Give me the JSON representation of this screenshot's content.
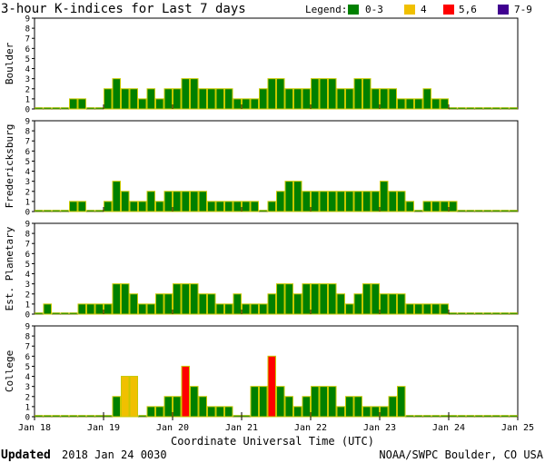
{
  "title": "3-hour K-indices for Last 7 days",
  "legend": {
    "label": "Legend:",
    "items": [
      {
        "label": "0-3",
        "color": "#008000"
      },
      {
        "label": "4",
        "color": "#f0c000"
      },
      {
        "label": "5,6",
        "color": "#ff0000"
      },
      {
        "label": "7-9",
        "color": "#400090"
      }
    ]
  },
  "footer": {
    "updated_label": "Updated",
    "updated_value": "2018 Jan 24 0030",
    "source": "NOAA/SWPC Boulder, CO USA"
  },
  "chart_data": [
    {
      "type": "bar",
      "title": "",
      "ylabel": "Boulder",
      "xlabel": "",
      "ylim": [
        0,
        9
      ],
      "yticks": [
        "0",
        "1",
        "2",
        "3",
        "4",
        "5",
        "6",
        "7",
        "8",
        "9"
      ],
      "values": [
        0,
        0,
        0,
        0,
        1,
        1,
        0,
        0,
        2,
        3,
        2,
        2,
        1,
        2,
        1,
        2,
        2,
        3,
        3,
        2,
        2,
        2,
        2,
        1,
        1,
        1,
        2,
        3,
        3,
        2,
        2,
        2,
        3,
        3,
        3,
        2,
        2,
        3,
        3,
        2,
        2,
        2,
        1,
        1,
        1,
        2,
        1,
        1,
        0,
        0,
        0,
        0,
        0,
        0,
        0,
        0
      ]
    },
    {
      "type": "bar",
      "title": "",
      "ylabel": "Fredericksburg",
      "xlabel": "",
      "ylim": [
        0,
        9
      ],
      "yticks": [
        "0",
        "1",
        "2",
        "3",
        "4",
        "5",
        "6",
        "7",
        "8",
        "9"
      ],
      "values": [
        0,
        0,
        0,
        0,
        1,
        1,
        0,
        0,
        1,
        3,
        2,
        1,
        1,
        2,
        1,
        2,
        2,
        2,
        2,
        2,
        1,
        1,
        1,
        1,
        1,
        1,
        0,
        1,
        2,
        3,
        3,
        2,
        2,
        2,
        2,
        2,
        2,
        2,
        2,
        2,
        3,
        2,
        2,
        1,
        0,
        1,
        1,
        1,
        1,
        0,
        0,
        0,
        0,
        0,
        0,
        0
      ]
    },
    {
      "type": "bar",
      "title": "",
      "ylabel": "Est. Planetary",
      "xlabel": "",
      "ylim": [
        0,
        9
      ],
      "yticks": [
        "0",
        "1",
        "2",
        "3",
        "4",
        "5",
        "6",
        "7",
        "8",
        "9"
      ],
      "values": [
        0,
        1,
        0,
        0,
        0,
        1,
        1,
        1,
        1,
        3,
        3,
        2,
        1,
        1,
        2,
        2,
        3,
        3,
        3,
        2,
        2,
        1,
        1,
        2,
        1,
        1,
        1,
        2,
        3,
        3,
        2,
        3,
        3,
        3,
        3,
        2,
        1,
        2,
        3,
        3,
        2,
        2,
        2,
        1,
        1,
        1,
        1,
        1,
        0,
        0,
        0,
        0,
        0,
        0,
        0,
        0
      ]
    },
    {
      "type": "bar",
      "title": "",
      "ylabel": "College",
      "xlabel": "Coordinate Universal Time (UTC)",
      "ylim": [
        0,
        9
      ],
      "yticks": [
        "0",
        "1",
        "2",
        "3",
        "4",
        "5",
        "6",
        "7",
        "8",
        "9"
      ],
      "xticks": [
        "Jan 18",
        "Jan 19",
        "Jan 20",
        "Jan 21",
        "Jan 22",
        "Jan 23",
        "Jan 24",
        "Jan 25"
      ],
      "values": [
        0,
        0,
        0,
        0,
        0,
        0,
        0,
        0,
        0,
        2,
        4,
        4,
        0,
        1,
        1,
        2,
        2,
        5,
        3,
        2,
        1,
        1,
        1,
        0,
        0,
        3,
        3,
        6,
        3,
        2,
        1,
        2,
        3,
        3,
        3,
        1,
        2,
        2,
        1,
        1,
        1,
        2,
        3,
        0,
        0,
        0,
        0,
        0,
        0,
        0,
        0,
        0,
        0,
        0,
        0,
        0
      ]
    }
  ]
}
